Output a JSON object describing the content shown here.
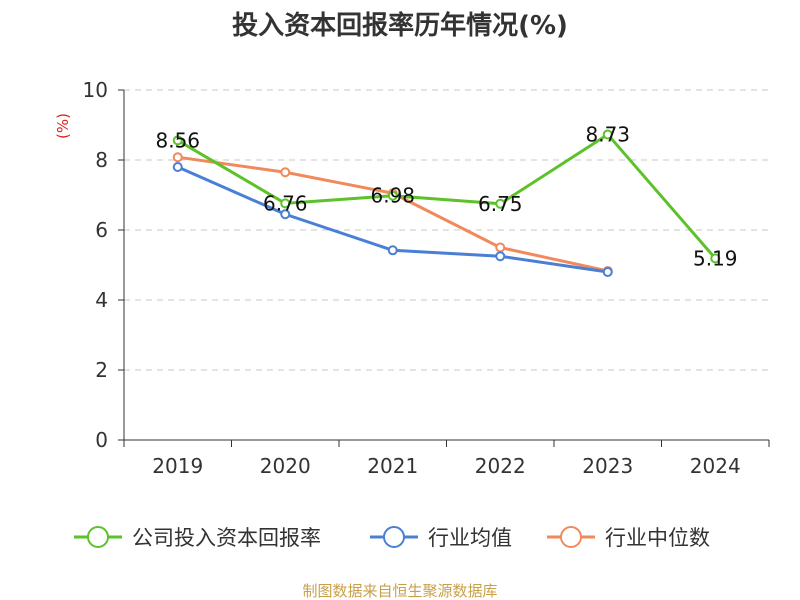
{
  "chart_data": {
    "type": "line",
    "title": "投入资本回报率历年情况(%)",
    "ylabel": "(%)",
    "xlabel": "",
    "categories": [
      "2019",
      "2020",
      "2021",
      "2022",
      "2023",
      "2024"
    ],
    "ylim": [
      0,
      10
    ],
    "yticks": [
      0,
      2,
      4,
      6,
      8,
      10
    ],
    "grid": true,
    "legend_position": "bottom",
    "series": [
      {
        "name": "公司投入资本回报率",
        "color": "#5cc22a",
        "values": [
          8.56,
          6.76,
          6.98,
          6.75,
          8.73,
          5.19
        ],
        "labels": [
          "8.56",
          "6.76",
          "6.98",
          "6.75",
          "8.73",
          "5.19"
        ]
      },
      {
        "name": "行业均值",
        "color": "#4a7fd6",
        "values": [
          7.8,
          6.45,
          5.42,
          5.25,
          4.8,
          null
        ]
      },
      {
        "name": "行业中位数",
        "color": "#f08a5d",
        "values": [
          8.08,
          7.65,
          7.05,
          5.5,
          4.83,
          null
        ]
      }
    ]
  },
  "footer": {
    "source": "制图数据来自恒生聚源数据库"
  }
}
